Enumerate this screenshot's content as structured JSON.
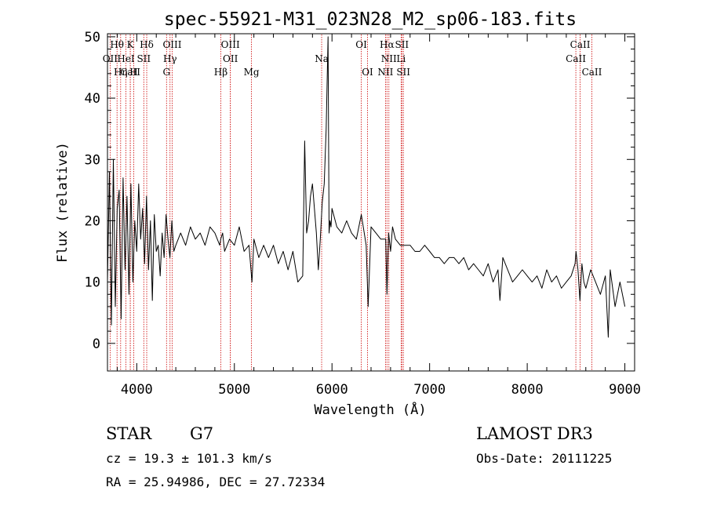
{
  "chart_data": {
    "type": "line",
    "title": "spec-55921-M31_023N28_M2_sp06-183.fits",
    "xlabel": "Wavelength (Å)",
    "ylabel": "Flux (relative)",
    "xlim": [
      3700,
      9100
    ],
    "ylim": [
      -4.5,
      50.5
    ],
    "x_ticks": [
      4000,
      5000,
      6000,
      7000,
      8000,
      9000
    ],
    "y_ticks": [
      0,
      10,
      20,
      30,
      40,
      50
    ],
    "grid": false,
    "line_color": "#cc0000",
    "series_color": "#000000",
    "series": [
      {
        "name": "Flux",
        "x": [
          3700,
          3720,
          3740,
          3760,
          3780,
          3800,
          3820,
          3840,
          3860,
          3880,
          3900,
          3920,
          3940,
          3960,
          3980,
          4000,
          4020,
          4040,
          4060,
          4080,
          4100,
          4120,
          4140,
          4160,
          4180,
          4200,
          4220,
          4240,
          4260,
          4280,
          4300,
          4320,
          4340,
          4360,
          4380,
          4400,
          4450,
          4500,
          4550,
          4600,
          4650,
          4700,
          4750,
          4800,
          4850,
          4860,
          4880,
          4900,
          4950,
          5000,
          5050,
          5100,
          5150,
          5180,
          5200,
          5250,
          5300,
          5350,
          5400,
          5450,
          5500,
          5550,
          5600,
          5650,
          5700,
          5720,
          5740,
          5760,
          5780,
          5800,
          5820,
          5840,
          5860,
          5880,
          5900,
          5920,
          5940,
          5960,
          5970,
          5980,
          5990,
          6000,
          6050,
          6100,
          6150,
          6200,
          6250,
          6300,
          6350,
          6370,
          6400,
          6450,
          6500,
          6550,
          6563,
          6580,
          6600,
          6620,
          6650,
          6700,
          6750,
          6800,
          6850,
          6900,
          6950,
          7000,
          7050,
          7100,
          7150,
          7200,
          7250,
          7300,
          7350,
          7400,
          7450,
          7500,
          7550,
          7600,
          7650,
          7700,
          7720,
          7750,
          7800,
          7850,
          7900,
          7950,
          8000,
          8050,
          8100,
          8150,
          8200,
          8250,
          8300,
          8350,
          8400,
          8450,
          8490,
          8500,
          8520,
          8540,
          8560,
          8580,
          8600,
          8650,
          8700,
          8750,
          8800,
          8830,
          8850,
          8900,
          8950,
          9000
        ],
        "y": [
          10,
          28,
          3,
          30,
          6,
          22,
          25,
          4,
          27,
          12,
          24,
          8,
          26,
          10,
          20,
          15,
          26,
          17,
          22,
          13,
          24,
          12,
          20,
          7,
          21,
          15,
          16,
          11,
          18,
          14,
          21,
          17,
          14,
          20,
          15,
          16,
          18,
          16,
          19,
          17,
          18,
          16,
          19,
          18,
          16,
          17,
          18,
          15,
          17,
          16,
          19,
          15,
          16,
          10,
          17,
          14,
          16,
          14,
          16,
          13,
          15,
          12,
          15,
          10,
          11,
          33,
          18,
          20,
          24,
          26,
          22,
          18,
          12,
          17,
          23,
          26,
          35,
          50,
          18,
          20,
          19,
          22,
          19,
          18,
          20,
          18,
          17,
          21,
          16,
          6,
          19,
          18,
          17,
          17,
          8,
          18,
          15,
          19,
          17,
          16,
          16,
          16,
          15,
          15,
          16,
          15,
          14,
          14,
          13,
          14,
          14,
          13,
          14,
          12,
          13,
          12,
          11,
          13,
          10,
          12,
          7,
          14,
          12,
          10,
          11,
          12,
          11,
          10,
          11,
          9,
          12,
          10,
          11,
          9,
          10,
          11,
          13,
          15,
          12,
          7,
          13,
          10,
          9,
          12,
          10,
          8,
          11,
          1,
          12,
          6,
          10,
          6
        ]
      }
    ],
    "lines": [
      {
        "name": "Hθ",
        "x": 3798,
        "row": 1
      },
      {
        "name": "OII",
        "x": 3727,
        "row": 2
      },
      {
        "name": "CaII",
        "x": 3934,
        "row": 3
      },
      {
        "name": "Hη",
        "x": 3835,
        "row": 3
      },
      {
        "name": "K",
        "x": 3934,
        "row": 1
      },
      {
        "name": "HeI",
        "x": 3889,
        "row": 2
      },
      {
        "name": "H",
        "x": 3969,
        "row": 3
      },
      {
        "name": "Hδ",
        "x": 4102,
        "row": 1
      },
      {
        "name": "SII",
        "x": 4072,
        "row": 2
      },
      {
        "name": "OIII",
        "x": 4363,
        "row": 1
      },
      {
        "name": "Hγ",
        "x": 4341,
        "row": 2
      },
      {
        "name": "G",
        "x": 4305,
        "row": 3
      },
      {
        "name": "OIII",
        "x": 4959,
        "row": 1
      },
      {
        "name": "OII",
        "x": 4959,
        "row": 2
      },
      {
        "name": "Hβ",
        "x": 4861,
        "row": 3
      },
      {
        "name": "Mg",
        "x": 5175,
        "row": 3
      },
      {
        "name": "Na",
        "x": 5894,
        "row": 2
      },
      {
        "name": "OI",
        "x": 6300,
        "row": 1
      },
      {
        "name": "OI",
        "x": 6364,
        "row": 3
      },
      {
        "name": "Hα",
        "x": 6563,
        "row": 1
      },
      {
        "name": "SII",
        "x": 6716,
        "row": 1
      },
      {
        "name": "NII",
        "x": 6583,
        "row": 2
      },
      {
        "name": "Li",
        "x": 6708,
        "row": 2
      },
      {
        "name": "NII",
        "x": 6548,
        "row": 3
      },
      {
        "name": "SII",
        "x": 6731,
        "row": 3
      },
      {
        "name": "CaII",
        "x": 8542,
        "row": 1
      },
      {
        "name": "CaII",
        "x": 8498,
        "row": 2
      },
      {
        "name": "CaII",
        "x": 8662,
        "row": 3
      }
    ]
  },
  "info": {
    "object_type": "STAR",
    "subclass": "G7",
    "survey": "LAMOST DR3",
    "redshift": "cz = 19.3 ± 101.3 km/s",
    "obs_date": "Obs-Date: 20111225",
    "coords": "RA =  25.94986, DEC =  27.72334"
  }
}
